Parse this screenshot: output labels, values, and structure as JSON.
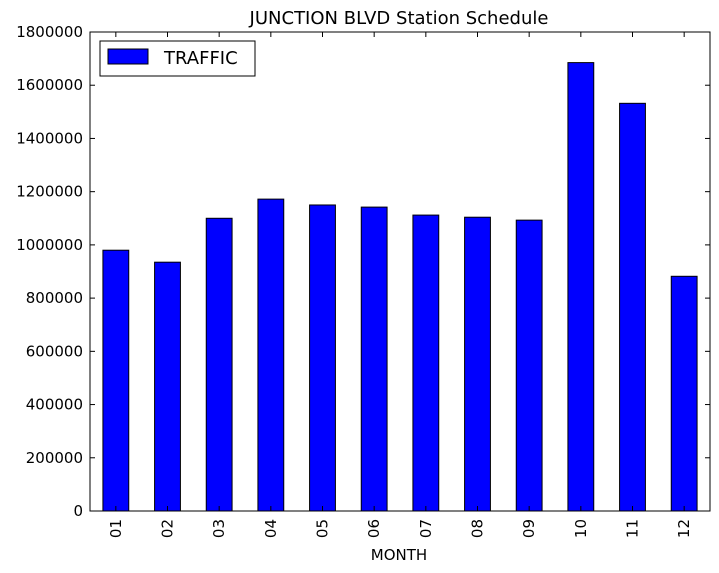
{
  "chart_data": {
    "type": "bar",
    "title": "JUNCTION BLVD Station Schedule",
    "xlabel": "MONTH",
    "ylabel": "",
    "categories": [
      "01",
      "02",
      "03",
      "04",
      "05",
      "06",
      "07",
      "08",
      "09",
      "10",
      "11",
      "12"
    ],
    "series": [
      {
        "name": "TRAFFIC",
        "color": "#0000ff",
        "values": [
          980000,
          935000,
          1100000,
          1172000,
          1150000,
          1142000,
          1112000,
          1104000,
          1093000,
          1685000,
          1532000,
          882000
        ]
      }
    ],
    "ylim": [
      0,
      1800000
    ],
    "yticks": [
      0,
      200000,
      400000,
      600000,
      800000,
      1000000,
      1200000,
      1400000,
      1600000,
      1800000
    ],
    "ytick_labels": [
      "0",
      "200000",
      "400000",
      "600000",
      "800000",
      "1000000",
      "1200000",
      "1400000",
      "1600000",
      "1800000"
    ],
    "legend": {
      "position": "top-left",
      "label": "TRAFFIC"
    },
    "grid": false
  }
}
